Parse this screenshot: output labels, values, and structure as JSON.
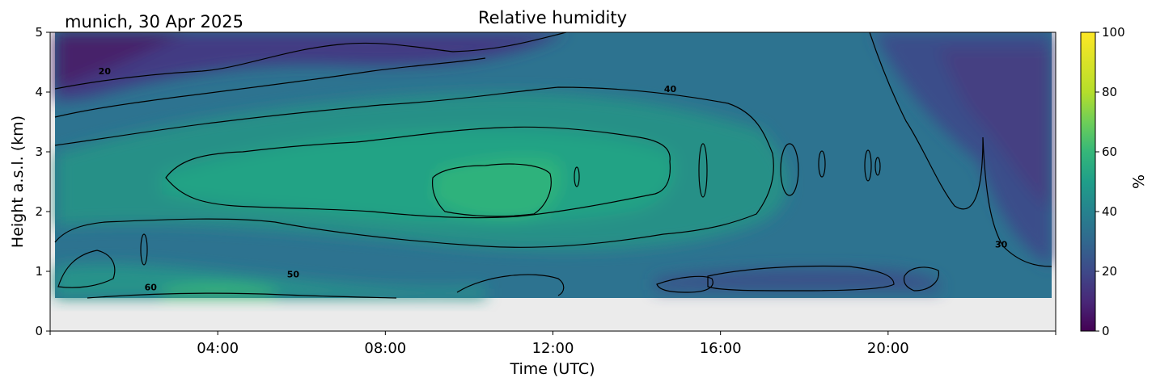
{
  "chart_data": {
    "type": "heatmap",
    "title": "Relative humidity",
    "subtitle": "munich, 30 Apr 2025",
    "xlabel": "Time (UTC)",
    "ylabel": "Height a.s.l. (km)",
    "x_range_hours": [
      0,
      24
    ],
    "ylim": [
      0,
      5
    ],
    "x_ticks": [
      "04:00",
      "08:00",
      "12:00",
      "16:00",
      "20:00"
    ],
    "x_tick_hours": [
      4,
      8,
      12,
      16,
      20
    ],
    "y_ticks": [
      "0",
      "1",
      "2",
      "3",
      "4",
      "5"
    ],
    "y_tick_values": [
      0,
      1,
      2,
      3,
      4,
      5
    ],
    "data_bottom_km": 0.55,
    "colorbar": {
      "label": "%",
      "range": [
        0,
        100
      ],
      "ticks": [
        "0",
        "20",
        "40",
        "60",
        "80",
        "100"
      ],
      "tick_values": [
        0,
        20,
        40,
        60,
        80,
        100
      ],
      "colormap": "viridis"
    },
    "contour_labels": [
      {
        "text": "20",
        "hour": 1.3,
        "km": 4.3
      },
      {
        "text": "40",
        "hour": 14.8,
        "km": 4.0
      },
      {
        "text": "30",
        "hour": 22.7,
        "km": 1.4
      },
      {
        "text": "50",
        "hour": 5.8,
        "km": 0.9
      },
      {
        "text": "60",
        "hour": 2.4,
        "km": 0.68
      }
    ],
    "no_data_color": "#ebebeb"
  }
}
